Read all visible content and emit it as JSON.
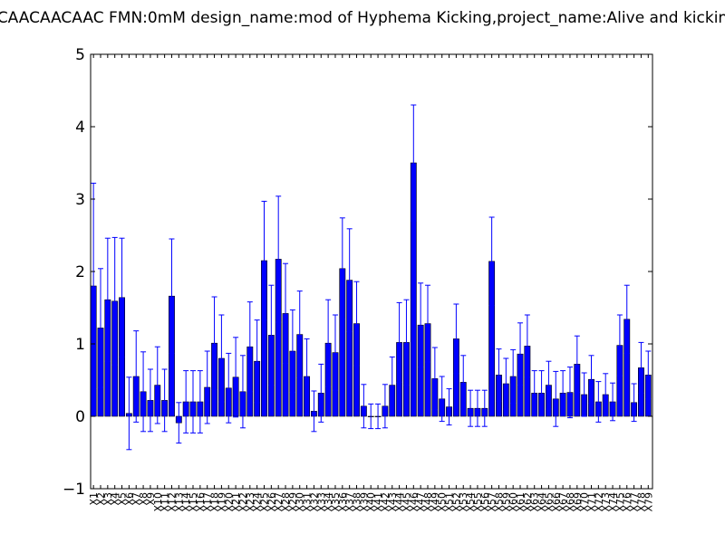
{
  "chart_data": {
    "type": "bar",
    "title": "CAACAACAAC  FMN:0mM  design_name:mod of Hyphema Kicking,project_name:Alive and kickin",
    "xlabel": "",
    "ylabel": "",
    "ylim": [
      -1,
      5
    ],
    "yticks": [
      "−1",
      "0",
      "1",
      "2",
      "3",
      "4",
      "5"
    ],
    "grid": false,
    "colors": {
      "bar": "#0000ff",
      "error": "#0000ff",
      "axis": "#000000"
    },
    "categories": [
      "X1",
      "X2",
      "X3",
      "X4",
      "X5",
      "X6",
      "X7",
      "X8",
      "X9",
      "X10",
      "X11",
      "X12",
      "X13",
      "X14",
      "X15",
      "X16",
      "X17",
      "X18",
      "X19",
      "X20",
      "X21",
      "X22",
      "X23",
      "X24",
      "X25",
      "X26",
      "X27",
      "X28",
      "X29",
      "X30",
      "X31",
      "X32",
      "X33",
      "X34",
      "X35",
      "X36",
      "X37",
      "X38",
      "X39",
      "X40",
      "X41",
      "X42",
      "X43",
      "X44",
      "X45",
      "X46",
      "X47",
      "X48",
      "X49",
      "X50",
      "X51",
      "X52",
      "X53",
      "X54",
      "X55",
      "X56",
      "X57",
      "X58",
      "X59",
      "X60",
      "X61",
      "X62",
      "X63",
      "X64",
      "X65",
      "X66",
      "X67",
      "X68",
      "X69",
      "X70",
      "X71",
      "X72",
      "X73",
      "X74",
      "X75",
      "X76",
      "X77",
      "X78",
      "X79"
    ],
    "values": [
      1.8,
      1.22,
      1.61,
      1.59,
      1.64,
      0.04,
      0.55,
      0.34,
      0.22,
      0.43,
      0.22,
      1.66,
      -0.09,
      0.2,
      0.2,
      0.2,
      0.4,
      1.01,
      0.8,
      0.39,
      0.54,
      0.34,
      0.96,
      0.76,
      2.15,
      1.12,
      2.17,
      1.42,
      0.9,
      1.13,
      0.55,
      0.07,
      0.32,
      1.01,
      0.88,
      2.04,
      1.88,
      1.28,
      0.14,
      0.0,
      0.0,
      0.14,
      0.43,
      1.02,
      1.02,
      3.5,
      1.26,
      1.28,
      0.52,
      0.24,
      0.13,
      1.07,
      0.47,
      0.11,
      0.11,
      0.11,
      2.14,
      0.57,
      0.45,
      0.55,
      0.86,
      0.97,
      0.32,
      0.32,
      0.43,
      0.24,
      0.32,
      0.33,
      0.72,
      0.3,
      0.51,
      0.2,
      0.3,
      0.2,
      0.98,
      1.34,
      0.19,
      0.67,
      0.57
    ],
    "errors": [
      1.42,
      0.82,
      0.85,
      0.88,
      0.82,
      0.5,
      0.63,
      0.55,
      0.43,
      0.53,
      0.43,
      0.79,
      0.28,
      0.43,
      0.43,
      0.43,
      0.5,
      0.64,
      0.6,
      0.48,
      0.55,
      0.5,
      0.62,
      0.57,
      0.82,
      0.69,
      0.87,
      0.69,
      0.57,
      0.6,
      0.52,
      0.28,
      0.4,
      0.6,
      0.52,
      0.7,
      0.71,
      0.58,
      0.3,
      0.17,
      0.17,
      0.3,
      0.39,
      0.55,
      0.59,
      0.8,
      0.58,
      0.53,
      0.43,
      0.31,
      0.25,
      0.48,
      0.37,
      0.25,
      0.25,
      0.25,
      0.61,
      0.36,
      0.35,
      0.37,
      0.43,
      0.43,
      0.31,
      0.31,
      0.33,
      0.38,
      0.31,
      0.35,
      0.39,
      0.3,
      0.33,
      0.28,
      0.29,
      0.26,
      0.42,
      0.47,
      0.26,
      0.35,
      0.33
    ]
  }
}
